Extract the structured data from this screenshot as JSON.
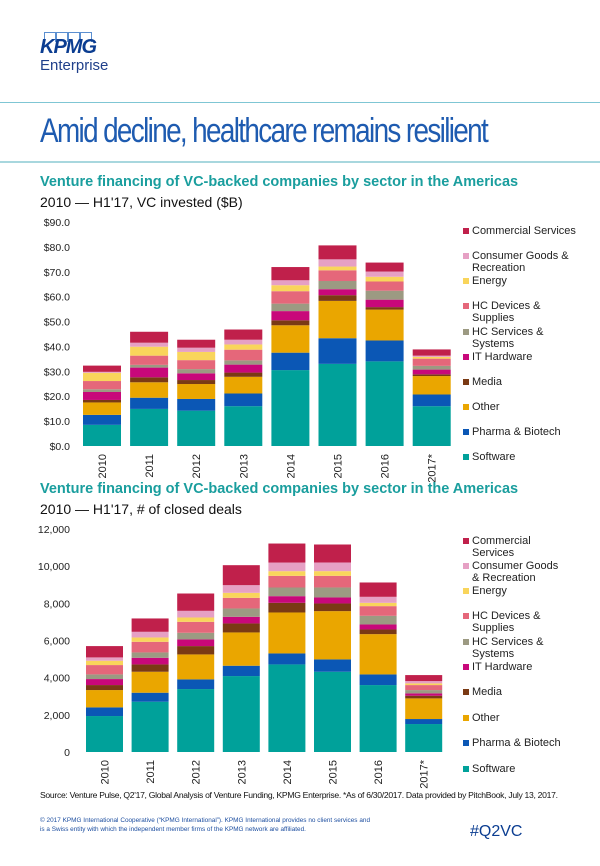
{
  "brand": {
    "logo_text": "KPMG",
    "logo_sub": "Enterprise"
  },
  "headline": "Amid decline, healthcare remains resilient",
  "colors": {
    "Commercial Services": "#c0204b",
    "Consumer Goods & Recreation": "#e6a0c4",
    "Energy": "#f9d55b",
    "HC Devices & Supplies": "#e5677a",
    "HC Services & Systems": "#9c9a82",
    "IT Hardware": "#c8087a",
    "Media": "#7a3a14",
    "Other": "#eaa600",
    "Pharma & Biotech": "#0b57b5",
    "Software": "#00a19a"
  },
  "chart_data": [
    {
      "type": "bar",
      "stacked": true,
      "title": "Venture financing of VC-backed companies by sector in the Americas",
      "subtitle": "2010 — H1'17, VC invested ($B)",
      "xlabel": "",
      "ylabel": "",
      "ylim": [
        0,
        90
      ],
      "yticks": [
        0,
        10,
        20,
        30,
        40,
        50,
        60,
        70,
        80,
        90
      ],
      "ytick_labels": [
        "$0.0",
        "$10.0",
        "$20.0",
        "$30.0",
        "$40.0",
        "$50.0",
        "$60.0",
        "$70.0",
        "$80.0",
        "$90.0"
      ],
      "grid": false,
      "legend_position": "right",
      "categories": [
        "2010",
        "2011",
        "2012",
        "2013",
        "2014",
        "2015",
        "2016",
        "2017*"
      ],
      "legend": [
        "Commercial Services",
        "Consumer Goods & Recreation",
        "Energy",
        "HC Devices & Supplies",
        "HC Services & Systems",
        "IT Hardware",
        "Media",
        "Other",
        "Pharma & Biotech",
        "Software"
      ],
      "series": [
        {
          "name": "Software",
          "values": [
            8.5,
            14.9,
            14.2,
            16.0,
            30.5,
            33.0,
            34.0,
            16.0
          ]
        },
        {
          "name": "Pharma & Biotech",
          "values": [
            4.0,
            4.5,
            4.7,
            5.1,
            7.0,
            10.3,
            8.4,
            4.7
          ]
        },
        {
          "name": "Other",
          "values": [
            5.0,
            6.2,
            6.0,
            6.7,
            11.0,
            15.0,
            12.4,
            7.4
          ]
        },
        {
          "name": "Media",
          "values": [
            1.0,
            2.0,
            1.6,
            1.7,
            2.0,
            2.3,
            1.0,
            0.7
          ]
        },
        {
          "name": "IT Hardware",
          "values": [
            3.2,
            3.9,
            2.7,
            3.2,
            3.7,
            2.4,
            3.0,
            1.9
          ]
        },
        {
          "name": "HC Services & Systems",
          "values": [
            1.1,
            1.1,
            1.7,
            1.7,
            3.0,
            3.3,
            3.6,
            1.5
          ]
        },
        {
          "name": "HC Devices & Supplies",
          "values": [
            3.3,
            3.7,
            3.6,
            4.3,
            5.0,
            4.3,
            3.7,
            2.9
          ]
        },
        {
          "name": "Energy",
          "values": [
            3.3,
            3.6,
            3.3,
            2.1,
            2.4,
            1.5,
            1.9,
            0.7
          ]
        },
        {
          "name": "Consumer Goods & Recreation",
          "values": [
            0.4,
            1.6,
            1.7,
            1.9,
            2.0,
            2.9,
            2.1,
            0.5
          ]
        },
        {
          "name": "Commercial Services",
          "values": [
            2.5,
            4.4,
            3.2,
            4.1,
            5.3,
            5.6,
            3.6,
            2.5
          ]
        }
      ]
    },
    {
      "type": "bar",
      "stacked": true,
      "title": "Venture financing of VC-backed companies by sector in the Americas",
      "subtitle": "2010 — H1'17, # of closed deals",
      "xlabel": "",
      "ylabel": "",
      "ylim": [
        0,
        12000
      ],
      "yticks": [
        0,
        2000,
        4000,
        6000,
        8000,
        10000,
        12000
      ],
      "ytick_labels": [
        "0",
        "2,000",
        "4,000",
        "6,000",
        "8,000",
        "10,000",
        "12,000"
      ],
      "grid": false,
      "legend_position": "right",
      "categories": [
        "2010",
        "2011",
        "2012",
        "2013",
        "2014",
        "2015",
        "2016",
        "2017*"
      ],
      "legend": [
        "Commercial Services",
        "Consumer Goods & Recreation",
        "Energy",
        "HC Devices & Supplies",
        "HC Services & Systems",
        "IT Hardware",
        "Media",
        "Other",
        "Pharma & Biotech",
        "Software"
      ],
      "series": [
        {
          "name": "Software",
          "values": [
            1935,
            2706,
            3387,
            4086,
            4713,
            4319,
            3602,
            1505
          ]
        },
        {
          "name": "Pharma & Biotech",
          "values": [
            466,
            484,
            520,
            556,
            591,
            663,
            573,
            269
          ]
        },
        {
          "name": "Other",
          "values": [
            932,
            1129,
            1344,
            1792,
            2204,
            2599,
            2168,
            1111
          ]
        },
        {
          "name": "Media",
          "values": [
            269,
            394,
            448,
            484,
            520,
            412,
            251,
            143
          ]
        },
        {
          "name": "IT Hardware",
          "values": [
            323,
            358,
            358,
            358,
            358,
            323,
            269,
            125
          ]
        },
        {
          "name": "HC Services & Systems",
          "values": [
            251,
            287,
            358,
            448,
            466,
            538,
            466,
            179
          ]
        },
        {
          "name": "HC Devices & Supplies",
          "values": [
            502,
            573,
            591,
            573,
            627,
            627,
            520,
            269
          ]
        },
        {
          "name": "Energy",
          "values": [
            233,
            233,
            233,
            269,
            251,
            251,
            179,
            90
          ]
        },
        {
          "name": "Consumer Goods & Recreation",
          "values": [
            179,
            305,
            358,
            412,
            466,
            466,
            323,
            125
          ]
        },
        {
          "name": "Commercial Services",
          "values": [
            609,
            717,
            932,
            1075,
            1022,
            968,
            771,
            323
          ]
        }
      ]
    }
  ],
  "legend_labels_chart1": [
    [
      "Commercial Services"
    ],
    [
      "Consumer Goods &",
      "Recreation"
    ],
    [
      "Energy"
    ],
    [
      "HC Devices &",
      "Supplies"
    ],
    [
      "HC Services &",
      "Systems"
    ],
    [
      "IT Hardware"
    ],
    [
      "Media"
    ],
    [
      "Other"
    ],
    [
      "Pharma & Biotech"
    ],
    [
      "Software"
    ]
  ],
  "legend_labels_chart2": [
    [
      "Commercial",
      "Services"
    ],
    [
      "Consumer Goods",
      "& Recreation"
    ],
    [
      "Energy"
    ],
    [
      "HC Devices &",
      "Supplies"
    ],
    [
      "HC Services &",
      "Systems"
    ],
    [
      "IT Hardware"
    ],
    [
      "Media"
    ],
    [
      "Other"
    ],
    [
      "Pharma & Biotech"
    ],
    [
      "Software"
    ]
  ],
  "footer": {
    "source": "Source: Venture Pulse, Q2'17, Global Analysis of Venture Funding, KPMG Enterprise. *As of 6/30/2017. Data provided by PitchBook, July 13, 2017.",
    "copyright": "© 2017 KPMG International Cooperative (“KPMG International”). KPMG International provides no client services and is a Swiss entity with which the independent member firms of the KPMG network are affiliated.",
    "hashtag": "#Q2VC"
  }
}
